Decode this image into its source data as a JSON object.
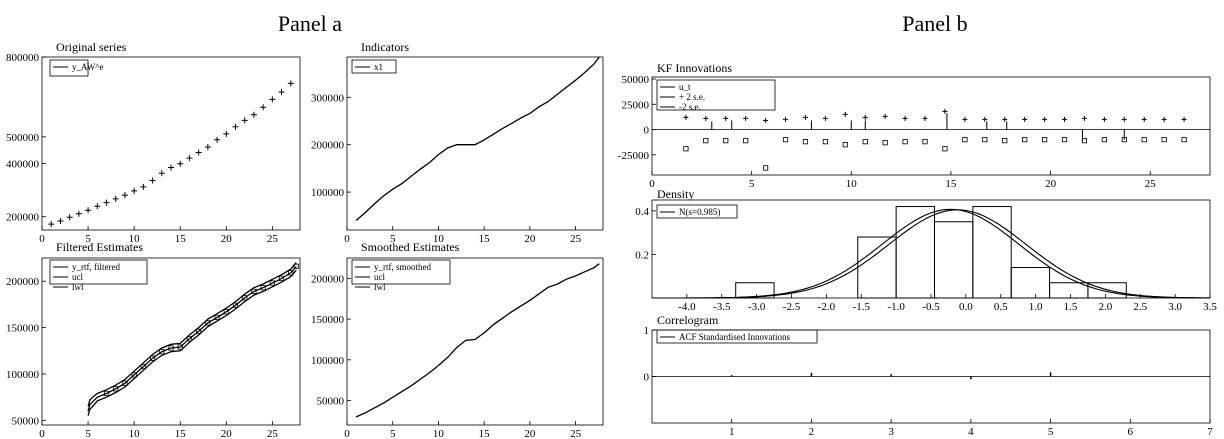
{
  "panel_a_heading": "Panel a",
  "panel_b_heading": "Panel b",
  "chart_data": [
    {
      "id": "original",
      "type": "scatter",
      "title": "Original series",
      "legend": [
        "y_AW^e"
      ],
      "xlim": [
        0,
        28
      ],
      "ylim": [
        150000,
        800000
      ],
      "xticks": [
        0,
        5,
        10,
        15,
        20,
        25
      ],
      "yticks": [
        200000,
        400000,
        500000,
        800000
      ],
      "ytick_labels": [
        "200000",
        "400000",
        "500000",
        "800000"
      ],
      "series": [
        {
          "marker": "plus",
          "x": [
            1,
            2,
            3,
            4,
            5,
            6,
            7,
            8,
            9,
            10,
            11,
            12,
            13,
            14,
            15,
            16,
            17,
            18,
            19,
            20,
            21,
            22,
            23,
            24,
            25,
            26,
            27
          ],
          "y": [
            172000,
            184000,
            198000,
            211000,
            224000,
            239000,
            253000,
            267000,
            281000,
            297000,
            312000,
            336000,
            363000,
            385000,
            399000,
            420000,
            441000,
            462000,
            489000,
            511000,
            538000,
            562000,
            583000,
            611000,
            641000,
            668000,
            701000
          ]
        }
      ]
    },
    {
      "id": "indicators",
      "type": "line",
      "title": "Indicators",
      "legend": [
        "x1"
      ],
      "xlim": [
        0,
        28
      ],
      "ylim": [
        20000,
        385000
      ],
      "xticks": [
        0,
        5,
        10,
        15,
        20,
        25
      ],
      "yticks": [
        100000,
        200000,
        300000
      ],
      "series": [
        {
          "x": [
            1,
            2,
            3,
            4,
            5,
            6,
            7,
            8,
            9,
            10,
            11,
            12,
            13,
            14,
            15,
            16,
            17,
            18,
            19,
            20,
            21,
            22,
            23,
            24,
            25,
            26,
            27,
            27.6
          ],
          "y": [
            40000,
            57000,
            75000,
            92000,
            106000,
            118000,
            133000,
            148000,
            162000,
            179000,
            193000,
            200000,
            200000,
            200000,
            210000,
            222000,
            234000,
            245000,
            256000,
            266000,
            280000,
            291000,
            306000,
            321000,
            336000,
            352000,
            370000,
            385000
          ]
        }
      ]
    },
    {
      "id": "filtered",
      "type": "line",
      "title": "Filtered Estimates",
      "legend": [
        "y_rtf, filtered",
        "ucl",
        "lwl"
      ],
      "xlim": [
        0,
        28
      ],
      "ylim": [
        45000,
        225000
      ],
      "xticks": [
        0,
        5,
        10,
        15,
        20,
        25
      ],
      "yticks": [
        50000,
        100000,
        150000,
        200000
      ],
      "series": [
        {
          "x": [
            5,
            5.2,
            5.5,
            6,
            7,
            8,
            9,
            10,
            11,
            12,
            13,
            14,
            15,
            16,
            17,
            18,
            19,
            20,
            21,
            22,
            23,
            24,
            25,
            26,
            27,
            27.6
          ],
          "y": [
            60000,
            67000,
            70000,
            75000,
            79000,
            84000,
            90000,
            99000,
            108000,
            117000,
            124000,
            128000,
            129000,
            138000,
            146000,
            155000,
            161000,
            167000,
            174000,
            182000,
            189000,
            193000,
            198000,
            203000,
            209000,
            216000
          ]
        },
        {
          "x": [
            5,
            5.2,
            5.5,
            6,
            7,
            8,
            9,
            10,
            11,
            12,
            13,
            14,
            15,
            16,
            17,
            18,
            19,
            20,
            21,
            22,
            23,
            24,
            25,
            26,
            27,
            27.6
          ],
          "y": [
            65000,
            72000,
            75000,
            79000,
            83000,
            88000,
            94000,
            103000,
            112000,
            121000,
            128000,
            132000,
            133000,
            142000,
            150000,
            159000,
            165000,
            171000,
            178000,
            186000,
            193000,
            197000,
            202000,
            207000,
            213000,
            220000
          ]
        },
        {
          "x": [
            5,
            5.2,
            5.5,
            6,
            7,
            8,
            9,
            10,
            11,
            12,
            13,
            14,
            15,
            16,
            17,
            18,
            19,
            20,
            21,
            22,
            23,
            24,
            25,
            26,
            27,
            27.6
          ],
          "y": [
            55000,
            62000,
            65000,
            71000,
            75000,
            80000,
            86000,
            95000,
            104000,
            113000,
            120000,
            124000,
            125000,
            134000,
            142000,
            151000,
            157000,
            163000,
            170000,
            178000,
            185000,
            189000,
            194000,
            199000,
            205000,
            212000
          ]
        }
      ]
    },
    {
      "id": "smoothed",
      "type": "line",
      "title": "Smoothed Estimates",
      "legend": [
        "y_rtf, smoothed",
        "ucl",
        "lwl"
      ],
      "xlim": [
        0,
        28
      ],
      "ylim": [
        20000,
        225000
      ],
      "xticks": [
        0,
        5,
        10,
        15,
        20,
        25
      ],
      "yticks": [
        50000,
        100000,
        150000,
        200000
      ],
      "series": [
        {
          "x": [
            1,
            2,
            3,
            4,
            5,
            6,
            7,
            8,
            9,
            10,
            11,
            12,
            13,
            14,
            15,
            16,
            17,
            18,
            19,
            20,
            21,
            22,
            23,
            24,
            25,
            26,
            27,
            27.6
          ],
          "y": [
            30000,
            35000,
            41000,
            47000,
            54000,
            61000,
            68000,
            76000,
            84000,
            93000,
            103000,
            115000,
            124000,
            125000,
            133000,
            143000,
            151000,
            159000,
            166000,
            173000,
            181000,
            189000,
            193000,
            199000,
            203000,
            208000,
            213000,
            218000
          ]
        }
      ]
    },
    {
      "id": "innovations",
      "type": "scatter",
      "title": "KF Innovations",
      "legend": [
        "u_t",
        "+ 2 s.e.",
        "-2 s.e."
      ],
      "xlim": [
        0,
        28
      ],
      "ylim": [
        -45000,
        52000
      ],
      "xticks": [
        0,
        5,
        10,
        15,
        20,
        25
      ],
      "yticks": [
        -25000,
        0,
        25000,
        50000
      ],
      "series": [
        {
          "name": "+ 2 s.e.",
          "marker": "plus",
          "x": [
            1.7,
            2.7,
            3.7,
            4.7,
            5.7,
            6.7,
            7.7,
            8.7,
            9.7,
            10.7,
            11.7,
            12.7,
            13.7,
            14.7,
            15.7,
            16.7,
            17.7,
            18.7,
            19.7,
            20.7,
            21.7,
            22.7,
            23.7,
            24.7,
            25.7,
            26.7
          ],
          "y": [
            12000,
            11000,
            11000,
            11000,
            9000,
            10000,
            12000,
            11000,
            15000,
            12000,
            13000,
            11000,
            11000,
            18000,
            10000,
            10000,
            10000,
            10000,
            10000,
            10000,
            11000,
            10000,
            10000,
            10000,
            10000,
            10000
          ]
        },
        {
          "name": "-2 s.e.",
          "marker": "square",
          "x": [
            1.7,
            2.7,
            3.7,
            4.7,
            5.7,
            6.7,
            7.7,
            8.7,
            9.7,
            10.7,
            11.7,
            12.7,
            13.7,
            14.7,
            15.7,
            16.7,
            17.7,
            18.7,
            19.7,
            20.7,
            21.7,
            22.7,
            23.7,
            24.7,
            25.7,
            26.7
          ],
          "y": [
            -19000,
            -11000,
            -11000,
            -11000,
            -38000,
            -10000,
            -12000,
            -12000,
            -15000,
            -12000,
            -13000,
            -12000,
            -12000,
            -19000,
            -10000,
            -10000,
            -11000,
            -10000,
            -10000,
            -10000,
            -11000,
            -10000,
            -10000,
            -10000,
            -10000,
            -10000
          ]
        },
        {
          "name": "u_t",
          "marker": "spike",
          "x": [
            3.0,
            4.0,
            8.0,
            10.0,
            10.7,
            14.8,
            16.8,
            17.8,
            21.6,
            23.7
          ],
          "y": [
            8000,
            9000,
            9000,
            9000,
            9000,
            16000,
            8000,
            8000,
            -11000,
            -10000
          ]
        }
      ]
    },
    {
      "id": "density",
      "type": "bar",
      "title": "Density",
      "legend": [
        "N(s=0.985)"
      ],
      "xlim": [
        -4.5,
        3.5
      ],
      "ylim": [
        0,
        0.45
      ],
      "xticks": [
        -4.0,
        -3.5,
        -3.0,
        -2.5,
        -2.0,
        -1.5,
        -1.0,
        -0.5,
        0.0,
        0.5,
        1.0,
        1.5,
        2.0,
        2.5,
        3.0,
        3.5
      ],
      "xtick_labels": [
        "-4.0",
        "-3.5",
        "-3.0",
        "-2.5",
        "-2.0",
        "-1.5",
        "-1.0",
        "-0.5",
        "0.0",
        "0.5",
        "1.0",
        "1.5",
        "2.0",
        "2.5",
        "3.0",
        "3.5"
      ],
      "yticks": [
        0.2,
        0.4
      ],
      "bins": [
        {
          "x0": -3.3,
          "x1": -2.75,
          "h": 0.07
        },
        {
          "x0": -1.55,
          "x1": -1.0,
          "h": 0.28
        },
        {
          "x0": -1.0,
          "x1": -0.45,
          "h": 0.42
        },
        {
          "x0": -0.45,
          "x1": 0.1,
          "h": 0.35
        },
        {
          "x0": 0.1,
          "x1": 0.65,
          "h": 0.42
        },
        {
          "x0": 0.65,
          "x1": 1.2,
          "h": 0.14
        },
        {
          "x0": 1.2,
          "x1": 1.75,
          "h": 0.07
        },
        {
          "x0": 1.75,
          "x1": 2.3,
          "h": 0.07
        }
      ],
      "curves": [
        {
          "name": "N(s=0.985)",
          "mu": -0.12,
          "sigma": 0.985
        },
        {
          "name": "estimated density",
          "mu": -0.22,
          "sigma": 0.98
        }
      ]
    },
    {
      "id": "correlogram",
      "type": "bar",
      "title": "Correlogram",
      "legend": [
        "ACF Standardised Innovations"
      ],
      "xlim": [
        0,
        7
      ],
      "ylim": [
        -1,
        1
      ],
      "xticks": [
        1,
        2,
        3,
        4,
        5,
        6,
        7
      ],
      "yticks": [
        0,
        1
      ],
      "lags": [
        1,
        2,
        3,
        4,
        5
      ],
      "values": [
        0.03,
        0.08,
        0.05,
        -0.06,
        0.09
      ]
    }
  ]
}
